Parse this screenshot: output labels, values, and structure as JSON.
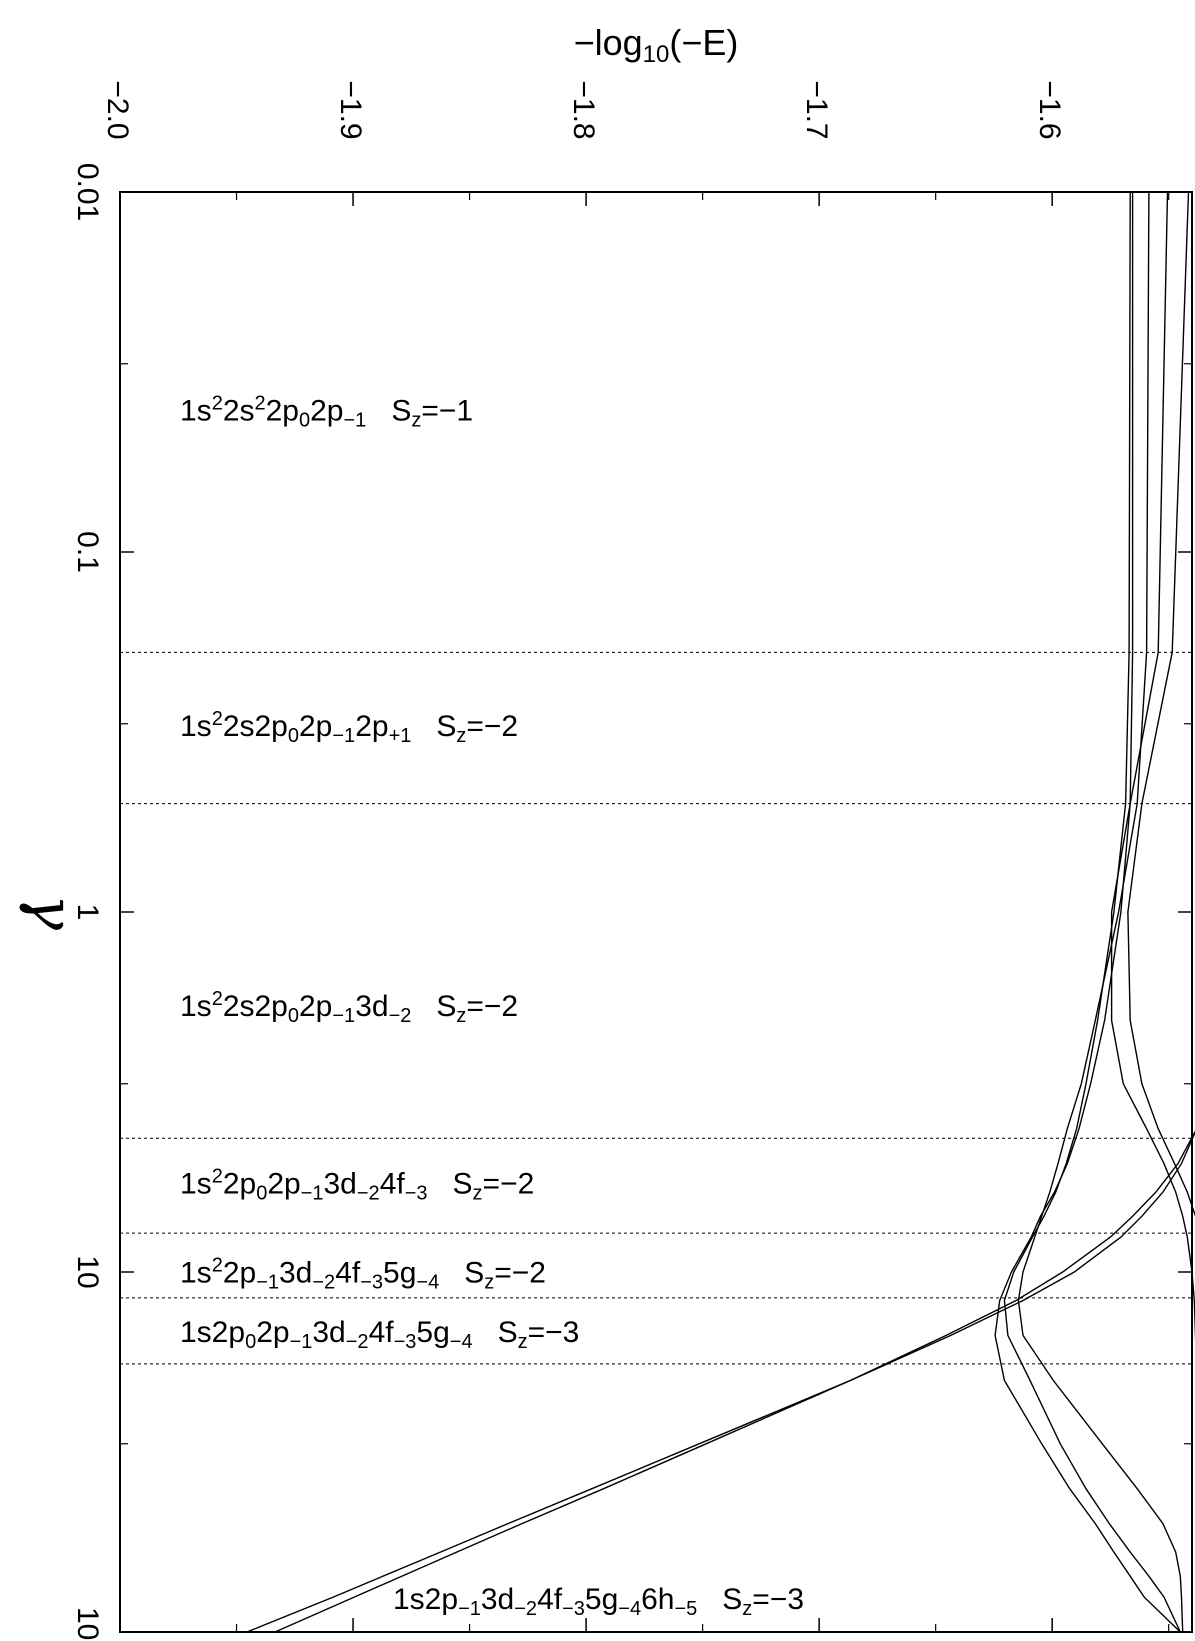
{
  "chart_data": {
    "type": "line",
    "orientation": "rotated",
    "title": "",
    "x_axis": {
      "label": "γ",
      "scale": "log",
      "range": [
        0.01,
        100
      ],
      "ticks": [
        0.01,
        0.1,
        1,
        10,
        100
      ],
      "tick_labels": [
        "0.01",
        "0.1",
        "1",
        "10",
        "100"
      ]
    },
    "y_axis": {
      "label_prefix": "−log",
      "label_sub": "10",
      "label_suffix": "(−E)",
      "range": [
        -2.0,
        -1.54
      ],
      "ticks": [
        -2.0,
        -1.9,
        -1.8,
        -1.7,
        -1.6
      ],
      "tick_labels": [
        "−2.0",
        "−1.9",
        "−1.8",
        "−1.7",
        "−1.6"
      ]
    },
    "boundaries": [
      0.19,
      0.5,
      4.25,
      7.8,
      11.8,
      18.0
    ],
    "regions": [
      {
        "gamma": 0.04,
        "config": [
          [
            "1s",
            ""
          ],
          [
            "2",
            "sup"
          ],
          [
            "2s",
            ""
          ],
          [
            "2",
            "sup"
          ],
          [
            "2p",
            ""
          ],
          [
            "0",
            "sub"
          ],
          [
            "2p",
            ""
          ],
          [
            "−1",
            "sub"
          ]
        ],
        "sz": "=−1"
      },
      {
        "gamma": 0.3,
        "config": [
          [
            "1s",
            ""
          ],
          [
            "2",
            "sup"
          ],
          [
            "2s2p",
            ""
          ],
          [
            "0",
            "sub"
          ],
          [
            "2p",
            ""
          ],
          [
            "−1",
            "sub"
          ],
          [
            "2p",
            ""
          ],
          [
            "+1",
            "sub"
          ]
        ],
        "sz": "=−2"
      },
      {
        "gamma": 1.8,
        "config": [
          [
            "1s",
            ""
          ],
          [
            "2",
            "sup"
          ],
          [
            "2s2p",
            ""
          ],
          [
            "0",
            "sub"
          ],
          [
            "2p",
            ""
          ],
          [
            "−1",
            "sub"
          ],
          [
            "3d",
            ""
          ],
          [
            "−2",
            "sub"
          ]
        ],
        "sz": "=−2"
      },
      {
        "gamma": 5.6,
        "config": [
          [
            "1s",
            ""
          ],
          [
            "2",
            "sup"
          ],
          [
            "2p",
            ""
          ],
          [
            "0",
            "sub"
          ],
          [
            "2p",
            ""
          ],
          [
            "−1",
            "sub"
          ],
          [
            "3d",
            ""
          ],
          [
            "−2",
            "sub"
          ],
          [
            "4f",
            ""
          ],
          [
            "−3",
            "sub"
          ]
        ],
        "sz": "=−2"
      },
      {
        "gamma": 9.9,
        "config": [
          [
            "1s",
            ""
          ],
          [
            "2",
            "sup"
          ],
          [
            "2p",
            ""
          ],
          [
            "−1",
            "sub"
          ],
          [
            "3d",
            ""
          ],
          [
            "−2",
            "sub"
          ],
          [
            "4f",
            ""
          ],
          [
            "−3",
            "sub"
          ],
          [
            "5g",
            ""
          ],
          [
            "−4",
            "sub"
          ]
        ],
        "sz": "=−2"
      },
      {
        "gamma": 14.5,
        "config": [
          [
            "1s2p",
            ""
          ],
          [
            "0",
            "sub"
          ],
          [
            "2p",
            ""
          ],
          [
            "−1",
            "sub"
          ],
          [
            "3d",
            ""
          ],
          [
            "−2",
            "sub"
          ],
          [
            "4f",
            ""
          ],
          [
            "−3",
            "sub"
          ],
          [
            "5g",
            ""
          ],
          [
            "−4",
            "sub"
          ]
        ],
        "sz": "=−3"
      },
      {
        "gamma": 80,
        "config": [
          [
            "1s2p",
            ""
          ],
          [
            "−1",
            "sub"
          ],
          [
            "3d",
            ""
          ],
          [
            "−2",
            "sub"
          ],
          [
            "4f",
            ""
          ],
          [
            "−3",
            "sub"
          ],
          [
            "5g",
            ""
          ],
          [
            "−4",
            "sub"
          ],
          [
            "6h",
            ""
          ],
          [
            "−5",
            "sub"
          ]
        ],
        "sz": "=−3"
      }
    ],
    "series": [
      {
        "x": [
          0.01,
          0.19,
          0.5,
          1,
          2,
          3,
          4,
          5,
          6,
          7,
          8,
          10,
          12,
          15,
          20,
          30,
          40,
          50,
          60,
          70,
          80,
          100
        ],
        "y": [
          -1.5655,
          -1.5655,
          -1.5665,
          -1.5705,
          -1.5775,
          -1.5835,
          -1.5885,
          -1.5935,
          -1.599,
          -1.605,
          -1.609,
          -1.6175,
          -1.6225,
          -1.6245,
          -1.6205,
          -1.6045,
          -1.5925,
          -1.5815,
          -1.5735,
          -1.5665,
          -1.5605,
          -1.545
        ]
      },
      {
        "x": [
          0.01,
          0.19,
          0.5,
          1,
          2,
          3,
          4,
          5,
          6,
          7,
          8,
          10,
          12,
          15,
          20,
          30,
          40,
          50,
          60,
          70,
          80,
          100
        ],
        "y": [
          -1.5665,
          -1.567,
          -1.5685,
          -1.5735,
          -1.5805,
          -1.5855,
          -1.5895,
          -1.594,
          -1.5985,
          -1.6035,
          -1.6085,
          -1.6165,
          -1.6205,
          -1.619,
          -1.6095,
          -1.5965,
          -1.5855,
          -1.5755,
          -1.5665,
          -1.5585,
          -1.552,
          -1.545
        ]
      },
      {
        "x": [
          0.01,
          0.19,
          0.5,
          1,
          2,
          3,
          4,
          5,
          6,
          7,
          8,
          10,
          12,
          15,
          20,
          30,
          40,
          50,
          60,
          70,
          80,
          100
        ],
        "y": [
          -1.5585,
          -1.5595,
          -1.5635,
          -1.5715,
          -1.5815,
          -1.5875,
          -1.5935,
          -1.5975,
          -1.601,
          -1.6045,
          -1.6075,
          -1.6125,
          -1.6145,
          -1.6125,
          -1.5995,
          -1.5785,
          -1.5635,
          -1.5525,
          -1.547,
          -1.545,
          -1.5445,
          -1.544
        ]
      },
      {
        "x": [
          0.01,
          0.19,
          0.5,
          1,
          2,
          3,
          4,
          5,
          6,
          7,
          8,
          10,
          12,
          15,
          20
        ],
        "y": [
          -1.5505,
          -1.5545,
          -1.5665,
          -1.5745,
          -1.5745,
          -1.5695,
          -1.5595,
          -1.552,
          -1.547,
          -1.544,
          -1.542,
          -1.54,
          -1.539,
          -1.5385,
          -1.538
        ]
      },
      {
        "x": [
          0.01,
          0.19,
          0.5,
          1,
          2,
          3,
          4,
          5,
          6,
          7
        ],
        "y": [
          -1.5415,
          -1.5485,
          -1.5615,
          -1.5675,
          -1.5665,
          -1.5615,
          -1.5545,
          -1.5475,
          -1.542,
          -1.5385
        ]
      },
      {
        "x": [
          0.01,
          0.1,
          1
        ],
        "y": [
          -1.537,
          -1.537,
          -1.537
        ]
      },
      {
        "x": [
          4,
          5,
          6,
          7,
          8,
          10,
          12,
          15,
          20,
          30,
          40,
          50,
          60,
          80,
          100
        ],
        "y": [
          -1.538,
          -1.5445,
          -1.5525,
          -1.5615,
          -1.5705,
          -1.5905,
          -1.6125,
          -1.6435,
          -1.6865,
          -1.7515,
          -1.7975,
          -1.8335,
          -1.8625,
          -1.9085,
          -1.9455
        ]
      },
      {
        "x": [
          4,
          5,
          6,
          7,
          8,
          10,
          12,
          15,
          20,
          30,
          40,
          50,
          60,
          80,
          100
        ],
        "y": [
          -1.538,
          -1.546,
          -1.5555,
          -1.5655,
          -1.575,
          -1.5955,
          -1.6155,
          -1.6455,
          -1.6865,
          -1.7485,
          -1.7925,
          -1.8275,
          -1.8555,
          -1.8995,
          -1.9335
        ]
      }
    ]
  }
}
